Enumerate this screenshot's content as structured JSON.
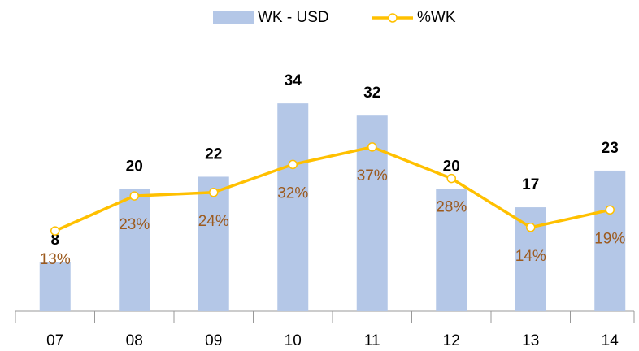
{
  "chart_data": {
    "type": "bar_line",
    "categories": [
      "07",
      "08",
      "09",
      "10",
      "11",
      "12",
      "13",
      "14"
    ],
    "series": [
      {
        "name": "WK - USD",
        "type": "bar",
        "color": "#b4c7e7",
        "values": [
          8,
          20,
          22,
          34,
          32,
          20,
          17,
          23
        ]
      },
      {
        "name": "%WK",
        "type": "line",
        "axis": "y2",
        "color": "#ffc000",
        "values": [
          13,
          23,
          24,
          32,
          37,
          28,
          14,
          19
        ],
        "value_labels": [
          "13%",
          "23%",
          "24%",
          "32%",
          "37%",
          "28%",
          "14%",
          "19%"
        ]
      }
    ],
    "ylim": [
      0,
      40
    ],
    "y2lim": [
      -10,
      60
    ],
    "legend": "top"
  }
}
